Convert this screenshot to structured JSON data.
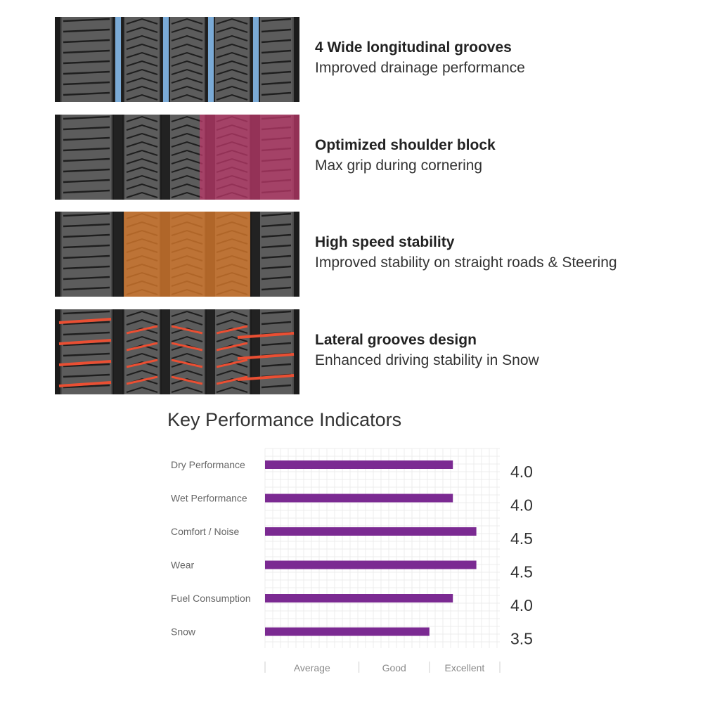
{
  "colors": {
    "bar": "#7b2a92",
    "groove_blue": "#7fb2e0",
    "shoulder_pink": "#c0396c",
    "center_orange": "#d97a2c",
    "lateral_red": "#ea4f33"
  },
  "features": [
    {
      "title": "4 Wide longitudinal grooves",
      "description": "Improved drainage performance",
      "highlight": "groove_blue"
    },
    {
      "title": "Optimized shoulder block",
      "description": "Max grip during cornering",
      "highlight": "shoulder_pink"
    },
    {
      "title": "High speed stability",
      "description": "Improved stability on straight roads & Steering",
      "highlight": "center_orange"
    },
    {
      "title": "Lateral grooves design",
      "description": "Enhanced driving stability in Snow",
      "highlight": "lateral_red"
    }
  ],
  "chart_data": {
    "type": "bar",
    "orientation": "horizontal",
    "title": "Key Performance Indicators",
    "categories": [
      "Dry Performance",
      "Wet Performance",
      "Comfort / Noise",
      "Wear",
      "Fuel Consumption",
      "Snow"
    ],
    "values": [
      4.0,
      4.0,
      4.5,
      4.5,
      4.0,
      3.5
    ],
    "value_labels": [
      "4.0",
      "4.0",
      "4.5",
      "4.5",
      "4.0",
      "3.5"
    ],
    "xlim": [
      0,
      5
    ],
    "x_axis_labels": [
      "Average",
      "Good",
      "Excellent"
    ],
    "x_axis_label_values": [
      1.0,
      2.75,
      4.25
    ],
    "x_axis_tick_values": [
      0,
      2,
      3.5,
      5
    ],
    "grid": true
  }
}
